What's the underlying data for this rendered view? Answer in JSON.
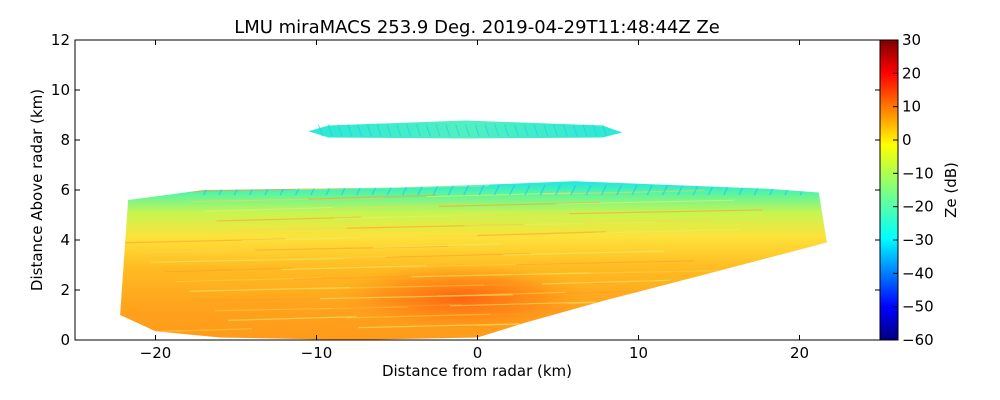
{
  "chart_data": {
    "type": "heatmap",
    "title": "LMU miraMACS 253.9 Deg. 2019-04-29T11:48:44Z  Ze",
    "xlabel": "Distance from radar (km)",
    "ylabel": "Distance Above radar  (km)",
    "xlim": [
      -25,
      25
    ],
    "ylim": [
      0,
      12
    ],
    "xticks": [
      -20,
      -10,
      0,
      10,
      20
    ],
    "xtick_labels": [
      "−20",
      "−10",
      "0",
      "10",
      "20"
    ],
    "yticks": [
      0,
      2,
      4,
      6,
      8,
      10,
      12
    ],
    "ytick_labels": [
      "0",
      "2",
      "4",
      "6",
      "8",
      "10",
      "12"
    ],
    "colorbar": {
      "label": "Ze (dB)",
      "range": [
        -60,
        30
      ],
      "ticks": [
        30,
        20,
        10,
        0,
        -10,
        -20,
        -30,
        -40,
        -50,
        -60
      ],
      "tick_labels": [
        "30",
        "20",
        "10",
        "0",
        "−10",
        "−20",
        "−30",
        "−40",
        "−50",
        "−60"
      ],
      "colormap": [
        "#00007f",
        "#0000ff",
        "#007fff",
        "#00ffff",
        "#7fff7f",
        "#ffff00",
        "#ff7f00",
        "#ff0000",
        "#7f0000"
      ]
    },
    "regions": [
      {
        "name": "main-precipitation-echo",
        "description_units": "km",
        "outline": [
          [
            -22.2,
            1.0
          ],
          [
            -21.7,
            5.6
          ],
          [
            -17.0,
            6.0
          ],
          [
            -11.0,
            6.05
          ],
          [
            -5.0,
            6.1
          ],
          [
            0.0,
            6.2
          ],
          [
            6.0,
            6.35
          ],
          [
            12.0,
            6.2
          ],
          [
            18.0,
            6.05
          ],
          [
            21.2,
            5.9
          ],
          [
            21.7,
            3.9
          ],
          [
            14.0,
            2.6
          ],
          [
            8.0,
            1.6
          ],
          [
            3.0,
            0.7
          ],
          [
            0.0,
            0.1
          ],
          [
            -8.0,
            0.0
          ],
          [
            -16.0,
            0.1
          ],
          [
            -20.0,
            0.35
          ],
          [
            -22.2,
            1.0
          ]
        ],
        "layers": [
          {
            "y_range": [
              5.0,
              6.3
            ],
            "ze_dB": -22
          },
          {
            "y_range": [
              4.2,
              5.0
            ],
            "ze_dB": -12
          },
          {
            "y_range": [
              3.0,
              4.2
            ],
            "ze_dB": -2
          },
          {
            "y_range": [
              0.3,
              3.0
            ],
            "ze_dB": 5
          },
          {
            "center": [
              -1.0,
              1.7
            ],
            "ze_dB": 14
          }
        ]
      },
      {
        "name": "upper-cloud-layer",
        "description_units": "km",
        "x_range": [
          -10.5,
          9.0
        ],
        "y_range": [
          8.1,
          8.7
        ],
        "ze_dB": -28
      }
    ]
  }
}
